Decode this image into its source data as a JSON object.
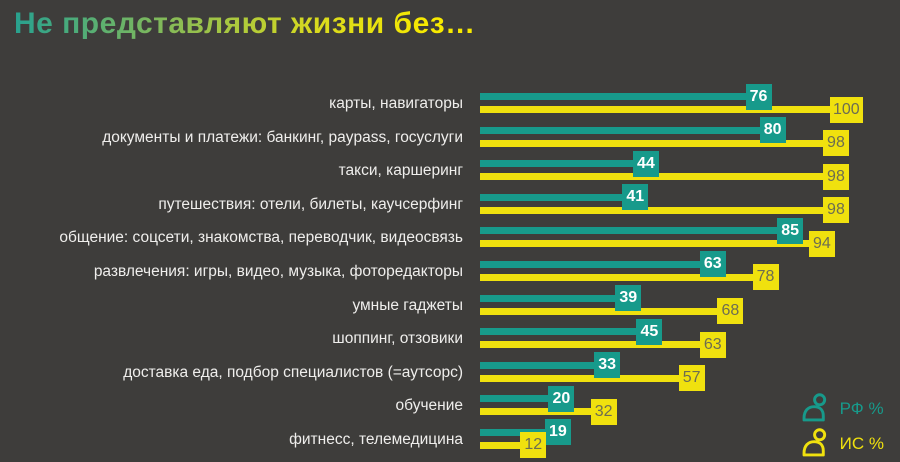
{
  "title": "Не представляют жизни без…",
  "colors": {
    "bg": "#3e3d3b",
    "rf": "#179a8b",
    "is": "#f0e10e",
    "label_text": "#efeeec",
    "rf_value_text": "#ffffff",
    "is_value_text": "#6d6d52",
    "title_gradient": [
      "#28a18f",
      "#8abc55",
      "#d8da1f",
      "#f8ea00"
    ]
  },
  "legend": {
    "items": [
      {
        "id": "rf",
        "label": "РФ %",
        "icon": "person-icon"
      },
      {
        "id": "is",
        "label": "ИС %",
        "icon": "person-icon"
      }
    ]
  },
  "chart_data": {
    "type": "bar",
    "orientation": "horizontal",
    "title": "Не представляют жизни без…",
    "categories": [
      "карты, навигаторы",
      "документы и платежи: банкинг, paypass, госуслуги",
      "такси, каршеринг",
      "путешествия: отели, билеты, каучсерфинг",
      "общение: соцсети, знакомства, переводчик, видеосвязь",
      "развлечения: игры, видео, музыка, фоторедакторы",
      "умные гаджеты",
      "шоппинг, отзовики",
      "доставка еда, подбор специалистов (=аутсорс)",
      "обучение",
      "фитнесс, телемедицина"
    ],
    "series": [
      {
        "name": "РФ %",
        "color": "#179a8b",
        "values": [
          76,
          80,
          44,
          41,
          85,
          63,
          39,
          45,
          33,
          20,
          19
        ]
      },
      {
        "name": "ИС %",
        "color": "#f0e10e",
        "values": [
          100,
          98,
          98,
          98,
          94,
          78,
          68,
          63,
          57,
          32,
          12
        ]
      }
    ],
    "xlim": [
      0,
      100
    ],
    "value_labels": true,
    "grid": false,
    "legend_position": "bottom-right"
  }
}
